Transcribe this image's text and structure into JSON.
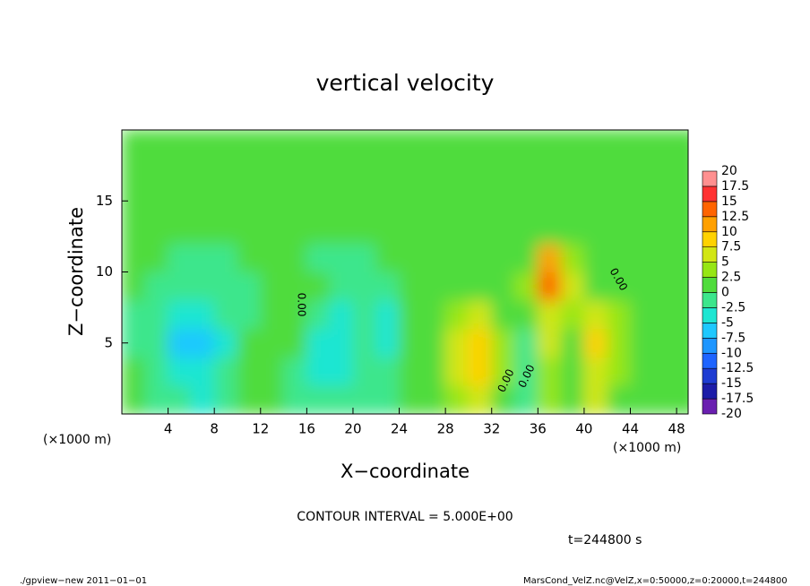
{
  "chart_data": {
    "type": "heatmap",
    "title": "vertical velocity",
    "x_label": "X−coordinate",
    "y_label": "Z−coordinate",
    "x_unit_labels": [
      "(×1000 m)",
      "(×1000 m)"
    ],
    "contour_interval": "CONTOUR INTERVAL = 5.000E+00",
    "time_label": "t=244800 s",
    "footer_left": "./gpview−new   2011−01−01",
    "footer_right": "MarsCond_VelZ.nc@VelZ,x=0:50000,z=0:20000,t=244800",
    "annotations": [
      "0.00",
      "0.00",
      "0.00",
      "0.00"
    ],
    "xlim": [
      0,
      49
    ],
    "ylim": [
      0,
      20
    ],
    "xticks": [
      4,
      8,
      12,
      16,
      20,
      24,
      28,
      32,
      36,
      40,
      44,
      48
    ],
    "yticks": [
      5,
      10,
      15
    ],
    "x": [
      1,
      3,
      5,
      7,
      9,
      11,
      13,
      15,
      17,
      19,
      21,
      23,
      25,
      27,
      29,
      31,
      33,
      35,
      37,
      39,
      41,
      43,
      45,
      47,
      49
    ],
    "y": [
      1,
      3,
      5,
      7,
      9,
      11,
      13,
      15,
      17,
      19
    ],
    "values": [
      [
        0,
        -1,
        -2,
        -3,
        -1,
        0,
        0,
        -1,
        -2,
        -2,
        -1,
        -1,
        0,
        1,
        3,
        5,
        2,
        -1,
        3,
        2,
        5,
        2,
        1,
        1,
        1
      ],
      [
        0,
        -1,
        -4,
        -5,
        -2,
        0,
        0,
        -1,
        -3,
        -5,
        -1,
        -1,
        0,
        1,
        5,
        8,
        3,
        -1,
        4,
        2,
        6,
        3,
        1,
        1,
        1
      ],
      [
        -1,
        -2,
        -6,
        -7,
        -3,
        0,
        0,
        1,
        -3,
        -5,
        -1,
        -3,
        0,
        2,
        6,
        9,
        3,
        -1,
        5,
        2,
        8,
        4,
        1,
        1,
        1
      ],
      [
        -1,
        -1,
        -3,
        -4,
        -2,
        -1,
        0,
        1,
        -1,
        -3,
        -1,
        -3,
        0,
        1,
        4,
        5,
        2,
        1,
        7,
        3,
        5,
        3,
        1,
        1,
        1
      ],
      [
        0,
        -1,
        -1,
        -1,
        -1,
        -1,
        0,
        1,
        0,
        -1,
        -1,
        -1,
        0,
        1,
        2,
        2,
        2,
        3,
        13,
        5,
        2,
        1,
        1,
        0,
        0
      ],
      [
        0,
        0,
        -1,
        -1,
        -1,
        0,
        0,
        0,
        -1,
        -1,
        -1,
        0,
        0,
        1,
        1,
        1,
        1,
        2,
        10,
        3,
        1,
        1,
        1,
        0,
        0
      ],
      [
        0,
        0,
        0,
        0,
        0,
        0,
        0,
        0,
        0,
        0,
        0,
        0,
        1,
        1,
        1,
        1,
        1,
        1,
        2,
        1,
        1,
        1,
        1,
        0,
        0
      ],
      [
        0,
        0,
        0,
        0,
        0,
        0,
        0,
        0,
        0,
        0,
        0,
        0,
        1,
        1,
        1,
        1,
        1,
        1,
        1,
        1,
        1,
        1,
        1,
        1,
        0
      ],
      [
        0,
        0,
        0,
        0,
        0,
        0,
        0,
        0,
        0,
        0,
        0,
        0,
        1,
        1,
        1,
        1,
        1,
        1,
        1,
        1,
        1,
        1,
        1,
        1,
        1
      ],
      [
        0,
        0,
        0,
        0,
        0,
        0,
        0,
        0,
        0,
        0,
        0,
        0,
        0,
        1,
        1,
        1,
        1,
        1,
        1,
        1,
        1,
        1,
        1,
        1,
        1
      ]
    ],
    "levels": [
      -20,
      -17.5,
      -15,
      -12.5,
      -10,
      -7.5,
      -5,
      -2.5,
      0,
      2.5,
      5,
      7.5,
      10,
      12.5,
      15,
      17.5,
      20
    ],
    "colors": [
      "#6a1fb0",
      "#1c1ca8",
      "#1e3cd2",
      "#1e64ff",
      "#1e96ff",
      "#1ec8ff",
      "#1ee6d2",
      "#3ce68c",
      "#50dc3c",
      "#96e614",
      "#d2e614",
      "#ffd200",
      "#ffa000",
      "#ff6400",
      "#ff3232",
      "#ff9090"
    ]
  }
}
